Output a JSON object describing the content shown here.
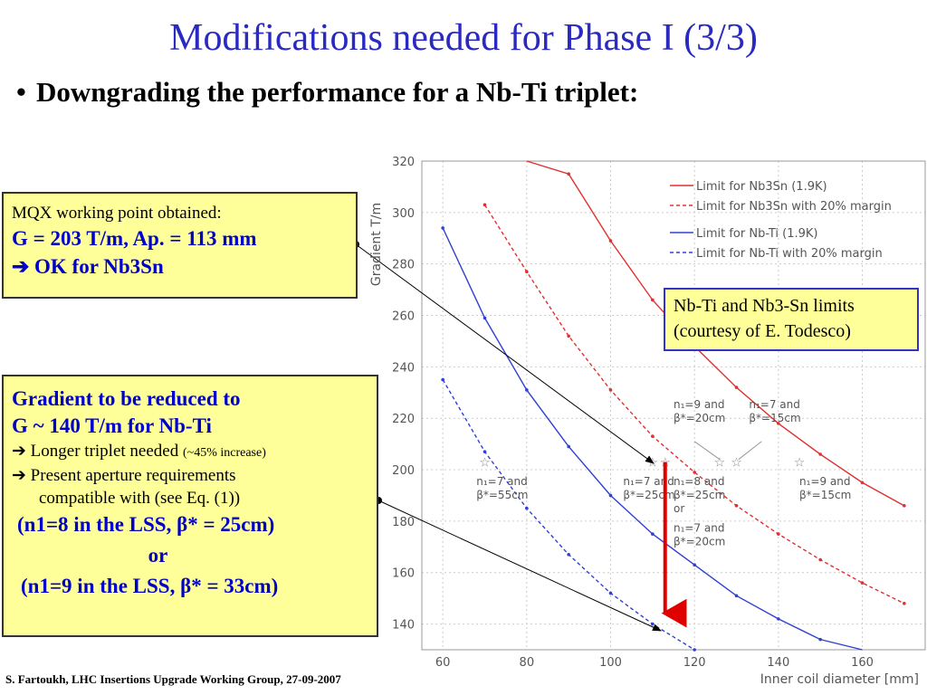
{
  "slide": {
    "title": "Modifications needed for Phase I (3/3)",
    "bullet": "Downgrading the performance for a Nb-Ti triplet:",
    "footer": "S. Fartoukh, LHC Insertions Upgrade Working Group, 27-09-2007"
  },
  "mqx_box": {
    "line1": "MQX working point obtained:",
    "line2": "G = 203 T/m, Ap. = 113 mm",
    "line3": "➔ OK for Nb3Sn"
  },
  "gradient_box": {
    "heading1": "Gradient to be reduced to",
    "heading2": "G ~ 140 T/m for Nb-Ti",
    "item1": "➔ Longer triplet needed",
    "item1_note": "(~45% increase)",
    "item2a": "➔ Present aperture requirements",
    "item2b": "compatible with (see Eq. (1))",
    "option1": "(n1=8 in the LSS, β* = 25cm)",
    "or": "or",
    "option2": "(n1=9 in the LSS, β* = 33cm)"
  },
  "credit_box": {
    "line1": "Nb-Ti and Nb3-Sn limits",
    "line2": "(courtesy of E. Todesco)"
  },
  "chart_data": {
    "type": "line",
    "xlabel": "Inner coil diameter [mm]",
    "ylabel": "Gradient T/m",
    "xlim": [
      55,
      175
    ],
    "ylim": [
      130,
      320
    ],
    "x_ticks": [
      60,
      80,
      100,
      120,
      140,
      160
    ],
    "y_ticks": [
      140,
      160,
      180,
      200,
      220,
      240,
      260,
      280,
      300,
      320
    ],
    "grid": true,
    "legend_position": "top-right",
    "colors": {
      "nb3sn": "#e03030",
      "nbti": "#3040d0",
      "arrow": "#e00000"
    },
    "series": [
      {
        "name": "Limit for Nb3Sn (1.9K)",
        "style": "solid",
        "color": "#e03030",
        "x": [
          80,
          90,
          100,
          110,
          120,
          130,
          140,
          150,
          160,
          170
        ],
        "y": [
          345,
          315,
          289,
          266,
          248,
          232,
          218,
          206,
          195,
          186
        ]
      },
      {
        "name": "Limit for Nb3Sn with 20% margin",
        "style": "dashed",
        "color": "#e03030",
        "x": [
          70,
          80,
          90,
          100,
          110,
          120,
          130,
          140,
          150,
          160,
          170
        ],
        "y": [
          303,
          277,
          252,
          231,
          213,
          199,
          186,
          175,
          165,
          156,
          148
        ]
      },
      {
        "name": "Limit for Nb-Ti (1.9K)",
        "style": "solid",
        "color": "#3040d0",
        "x": [
          60,
          70,
          80,
          90,
          100,
          110,
          120,
          130,
          140,
          150,
          160
        ],
        "y": [
          294,
          259,
          231,
          209,
          190,
          175,
          163,
          151,
          142,
          134,
          127
        ]
      },
      {
        "name": "Limit for Nb-Ti with 20% margin",
        "style": "dashed",
        "color": "#3040d0",
        "x": [
          60,
          70,
          80,
          90,
          100,
          110,
          120
        ],
        "y": [
          235,
          207,
          185,
          167,
          152,
          140,
          130
        ]
      }
    ],
    "star_markers": [
      {
        "x": 70,
        "y": 203
      },
      {
        "x": 110,
        "y": 203
      },
      {
        "x": 113,
        "y": 203
      },
      {
        "x": 126,
        "y": 203
      },
      {
        "x": 130,
        "y": 203
      },
      {
        "x": 145,
        "y": 203
      }
    ],
    "annotations": [
      {
        "lines": [
          "n₁=7 and",
          "β*=55cm"
        ],
        "x": 68,
        "y": 194
      },
      {
        "lines": [
          "n₁=7 and",
          "β*=25cm"
        ],
        "x": 103,
        "y": 194
      },
      {
        "lines": [
          "n₁=8 and",
          "β*=25cm",
          "or"
        ],
        "x": 115,
        "y": 194
      },
      {
        "lines": [
          "n₁=7 and",
          "β*=20cm"
        ],
        "x": 115,
        "y": 176
      },
      {
        "lines": [
          "n₁=9 and",
          "β*=20cm"
        ],
        "x": 115,
        "y": 224
      },
      {
        "lines": [
          "n₁=7 and",
          "β*=15cm"
        ],
        "x": 133,
        "y": 224
      },
      {
        "lines": [
          "n₁=9 and",
          "β*=15cm"
        ],
        "x": 145,
        "y": 194
      }
    ],
    "red_arrow": {
      "x": 113,
      "y_from": 203,
      "y_to": 140
    }
  }
}
